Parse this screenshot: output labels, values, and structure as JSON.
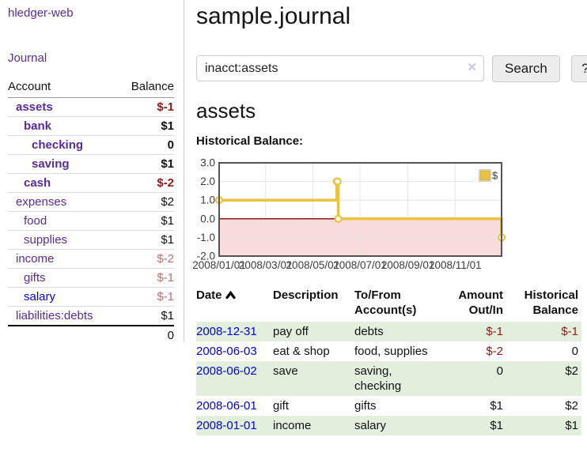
{
  "colors": {
    "link_purple": "#5b2a9b",
    "link_blue": "#0000e0",
    "neg_strong": "#8f1a1a",
    "neg_soft": "#bd6f6f",
    "row_green": "#e2efdd",
    "series_yellow": "#edc240",
    "neg_region_pink": "#f9dcdc",
    "zero_line_red": "#8b0000",
    "grid_gray": "#e6e6e6",
    "plot_border": "#545454"
  },
  "sidebar": {
    "brand": "hledger-web",
    "journal_link": "Journal",
    "accounts": {
      "col_account": "Account",
      "col_balance": "Balance",
      "rows": [
        {
          "name": "assets",
          "level": 1,
          "bold": true,
          "name_color": "purple",
          "balance": "$-1",
          "balance_color": "darkred"
        },
        {
          "name": "bank",
          "level": 2,
          "bold": true,
          "name_color": "purple",
          "balance": "$1",
          "balance_color": "plain"
        },
        {
          "name": "checking",
          "level": 3,
          "bold": true,
          "name_color": "purple",
          "balance": "0",
          "balance_color": "plain"
        },
        {
          "name": "saving",
          "level": 3,
          "bold": true,
          "name_color": "purple",
          "balance": "$1",
          "balance_color": "plain"
        },
        {
          "name": "cash",
          "level": 2,
          "bold": true,
          "name_color": "purple",
          "balance": "$-2",
          "balance_color": "darkred"
        },
        {
          "name": "expenses",
          "level": 1,
          "bold": false,
          "name_color": "purple",
          "balance": "$2",
          "balance_color": "plain"
        },
        {
          "name": "food",
          "level": 2,
          "bold": false,
          "name_color": "purple",
          "balance": "$1",
          "balance_color": "plain"
        },
        {
          "name": "supplies",
          "level": 2,
          "bold": false,
          "name_color": "purple",
          "balance": "$1",
          "balance_color": "plain"
        },
        {
          "name": "income",
          "level": 1,
          "bold": false,
          "name_color": "purple",
          "balance": "$-2",
          "balance_color": "softred"
        },
        {
          "name": "gifts",
          "level": 2,
          "bold": false,
          "name_color": "purple",
          "balance": "$-1",
          "balance_color": "softred"
        },
        {
          "name": "salary",
          "level": 2,
          "bold": false,
          "name_color": "blue",
          "balance": "$-1",
          "balance_color": "softred"
        },
        {
          "name": "liabilities:debts",
          "level": 1,
          "bold": false,
          "name_color": "purple",
          "balance": "$1",
          "balance_color": "plain"
        }
      ],
      "total": "0"
    }
  },
  "header": {
    "title": "sample.journal"
  },
  "search": {
    "query": "inacct:assets",
    "clear_icon": "✕",
    "search_button": "Search",
    "help_button": "?"
  },
  "account_page": {
    "heading": "assets",
    "chart_title": "Historical Balance:"
  },
  "chart_data": {
    "type": "line",
    "step": true,
    "title": "Historical Balance",
    "legend": "$",
    "legend_position": "top-right",
    "grid": true,
    "x_range": [
      "2008-01-01",
      "2008-12-31"
    ],
    "ylim": [
      -2.0,
      3.0
    ],
    "y_ticks": [
      3.0,
      2.0,
      1.0,
      0.0,
      -1.0,
      -2.0
    ],
    "x_ticks": [
      {
        "label": "2008/01/01",
        "date": "2008-01-01"
      },
      {
        "label": "2008/03/01",
        "date": "2008-03-01"
      },
      {
        "label": "2008/05/01",
        "date": "2008-05-01"
      },
      {
        "label": "2008/07/01",
        "date": "2008-07-01"
      },
      {
        "label": "2008/09/01",
        "date": "2008-09-01"
      },
      {
        "label": "2008/11/01",
        "date": "2008-11-01"
      }
    ],
    "series": [
      {
        "name": "$",
        "color": "#edc240",
        "points": [
          {
            "x": "2008-01-01",
            "y": 1
          },
          {
            "x": "2008-06-01",
            "y": 2
          },
          {
            "x": "2008-06-02",
            "y": 2
          },
          {
            "x": "2008-06-03",
            "y": 0
          },
          {
            "x": "2008-12-31",
            "y": -1
          }
        ]
      }
    ],
    "negative_region": {
      "from": 0.0,
      "to": -2.0
    }
  },
  "register": {
    "columns": {
      "date": "Date",
      "description": "Description",
      "accounts": "To/From Account(s)",
      "amount": "Amount Out/In",
      "balance": "Historical Balance"
    },
    "rows": [
      {
        "date": "2008-12-31",
        "description": "pay off",
        "accounts": "debts",
        "amount": "$-1",
        "amount_color": "darkred",
        "balance": "$-1",
        "balance_color": "darkred"
      },
      {
        "date": "2008-06-03",
        "description": "eat & shop",
        "accounts": "food, supplies",
        "amount": "$-2",
        "amount_color": "darkred",
        "balance": "0",
        "balance_color": "plain"
      },
      {
        "date": "2008-06-02",
        "description": "save",
        "accounts": "saving, checking",
        "amount": "0",
        "amount_color": "plain",
        "balance": "$2",
        "balance_color": "plain"
      },
      {
        "date": "2008-06-01",
        "description": "gift",
        "accounts": "gifts",
        "amount": "$1",
        "amount_color": "plain",
        "balance": "$2",
        "balance_color": "plain"
      },
      {
        "date": "2008-01-01",
        "description": "income",
        "accounts": "salary",
        "amount": "$1",
        "amount_color": "plain",
        "balance": "$1",
        "balance_color": "plain"
      }
    ]
  }
}
